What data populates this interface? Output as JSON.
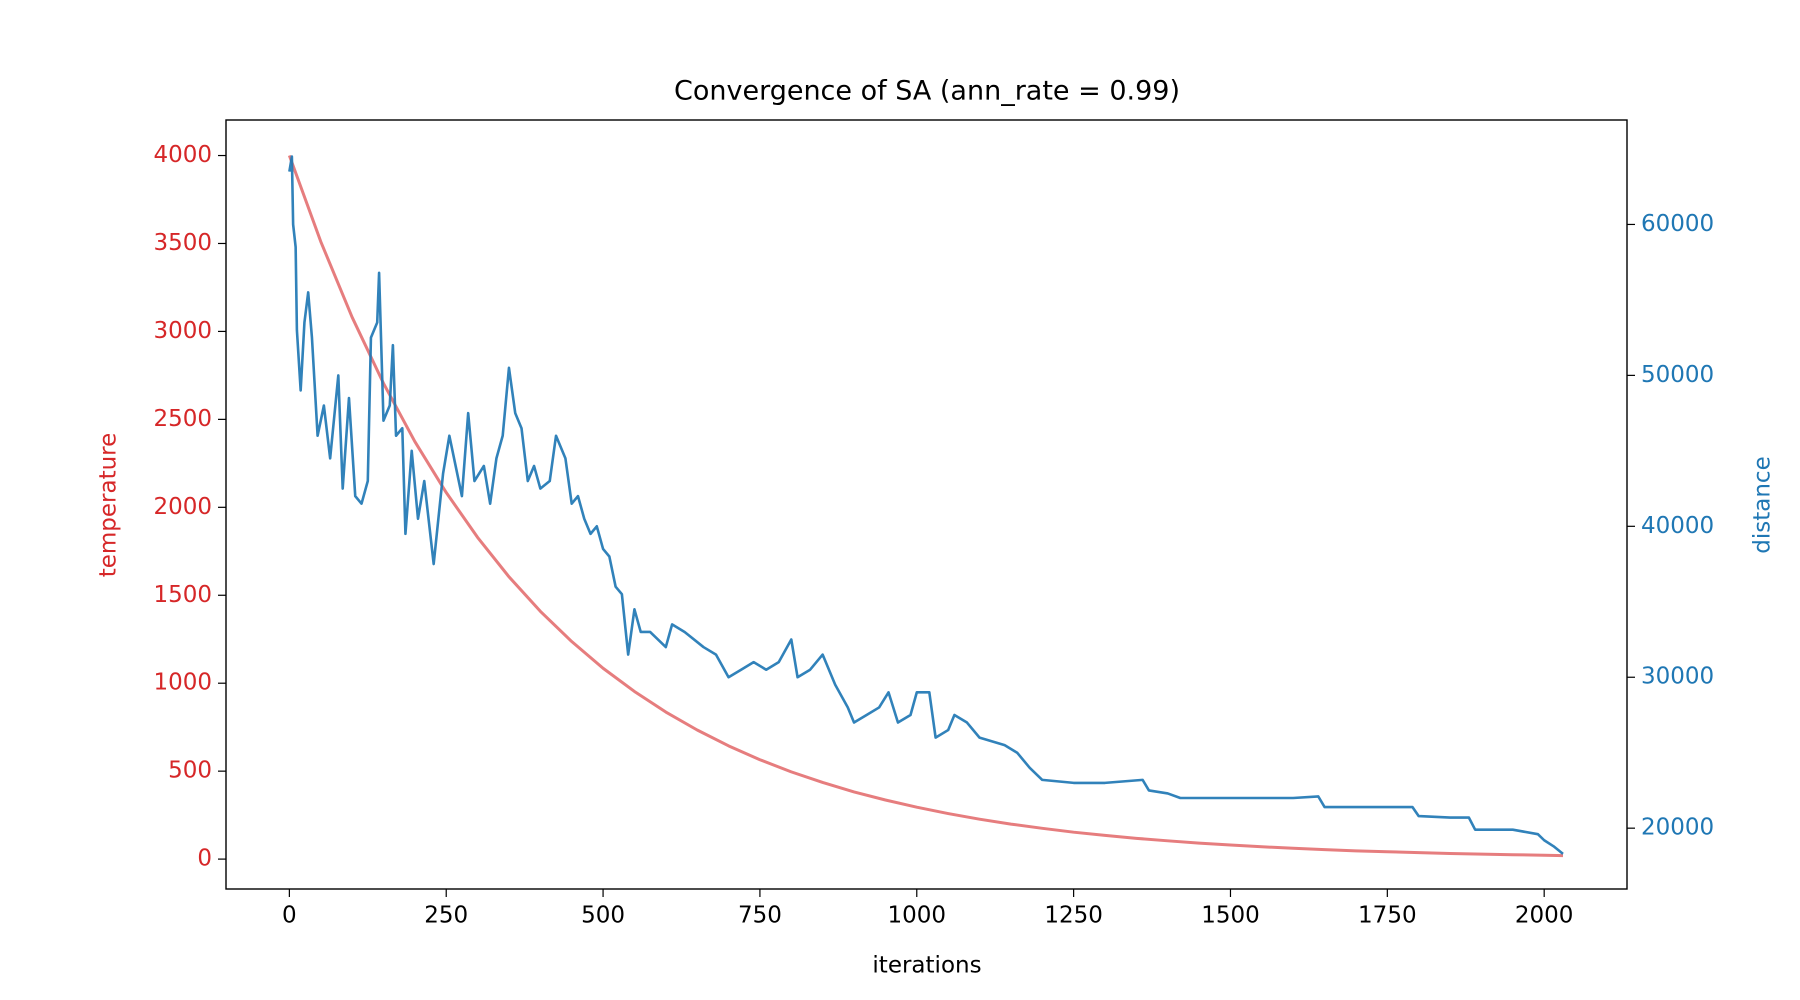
{
  "chart_data": {
    "type": "line",
    "title": "Convergence of SA (ann_rate = 0.99)",
    "xlabel": "iterations",
    "ylabel": "temperature",
    "y2label": "distance",
    "xlim": [
      -101,
      2132
    ],
    "xticks": [
      0,
      250,
      500,
      750,
      1000,
      1250,
      1500,
      1750,
      2000
    ],
    "ylim": [
      -170,
      4202
    ],
    "yticks": [
      0,
      500,
      1000,
      1500,
      2000,
      2500,
      3000,
      3500,
      4000
    ],
    "y2lim": [
      15970,
      66920
    ],
    "y2ticks": [
      20000,
      30000,
      40000,
      50000,
      60000
    ],
    "grid": false,
    "series": [
      {
        "name": "temperature",
        "color": "#d62728",
        "axis": "y",
        "x": [
          0,
          50,
          100,
          150,
          200,
          250,
          300,
          350,
          400,
          450,
          500,
          550,
          600,
          650,
          700,
          750,
          800,
          850,
          900,
          950,
          1000,
          1050,
          1100,
          1150,
          1200,
          1250,
          1300,
          1350,
          1400,
          1450,
          1500,
          1550,
          1600,
          1650,
          1700,
          1750,
          1800,
          1850,
          1900,
          1950,
          2000,
          2030
        ],
        "values": [
          4000,
          3511,
          3081,
          2705,
          2374,
          2084,
          1829,
          1605,
          1409,
          1237,
          1085,
          953,
          836,
          734,
          644,
          565,
          496,
          436,
          382,
          336,
          295,
          259,
          227,
          199,
          175,
          153,
          135,
          118,
          104,
          91,
          80,
          70,
          62,
          54,
          47,
          42,
          37,
          32,
          28,
          25,
          22,
          20
        ]
      },
      {
        "name": "distance",
        "color": "#1f77b4",
        "axis": "y2",
        "x": [
          0,
          4,
          6,
          10,
          12,
          18,
          24,
          30,
          36,
          45,
          55,
          65,
          78,
          85,
          95,
          105,
          115,
          125,
          130,
          140,
          143,
          150,
          160,
          165,
          170,
          180,
          185,
          195,
          205,
          215,
          230,
          245,
          255,
          265,
          275,
          285,
          295,
          310,
          320,
          330,
          340,
          350,
          360,
          370,
          380,
          390,
          400,
          415,
          425,
          440,
          450,
          460,
          470,
          480,
          490,
          500,
          510,
          520,
          530,
          540,
          550,
          560,
          575,
          600,
          610,
          630,
          660,
          680,
          700,
          720,
          740,
          760,
          780,
          800,
          810,
          830,
          850,
          870,
          890,
          900,
          920,
          940,
          955,
          970,
          990,
          1000,
          1020,
          1030,
          1050,
          1060,
          1080,
          1100,
          1140,
          1160,
          1180,
          1200,
          1250,
          1300,
          1360,
          1370,
          1400,
          1420,
          1500,
          1600,
          1640,
          1650,
          1700,
          1790,
          1800,
          1850,
          1880,
          1890,
          1950,
          1990,
          2000,
          2015,
          2030
        ],
        "values": [
          63500,
          64500,
          60000,
          58500,
          53000,
          49000,
          53500,
          55500,
          52500,
          46000,
          48000,
          44500,
          50000,
          42500,
          48500,
          42000,
          41500,
          43000,
          52500,
          53500,
          56800,
          47000,
          48000,
          52000,
          46000,
          46500,
          39500,
          45000,
          40500,
          43000,
          37500,
          43500,
          46000,
          44000,
          42000,
          47500,
          43000,
          44000,
          41500,
          44500,
          46000,
          50500,
          47500,
          46500,
          43000,
          44000,
          42500,
          43000,
          46000,
          44500,
          41500,
          42000,
          40500,
          39500,
          40000,
          38500,
          38000,
          36000,
          35500,
          31500,
          34500,
          33000,
          33000,
          32000,
          33500,
          33000,
          32000,
          31500,
          30000,
          30500,
          31000,
          30500,
          31000,
          32500,
          30000,
          30500,
          31500,
          29500,
          28000,
          27000,
          27500,
          28000,
          29000,
          27000,
          27500,
          29000,
          29000,
          26000,
          26500,
          27500,
          27000,
          26000,
          25500,
          25000,
          24000,
          23200,
          23000,
          23000,
          23200,
          22500,
          22300,
          22000,
          22000,
          22000,
          22100,
          21400,
          21400,
          21400,
          20800,
          20700,
          20700,
          19900,
          19900,
          19600,
          19200,
          18800,
          18300
        ]
      }
    ]
  }
}
